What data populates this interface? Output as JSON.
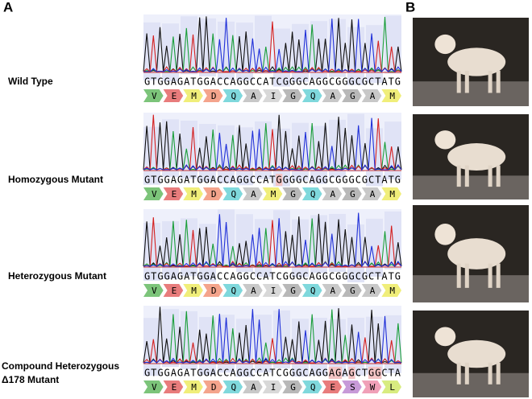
{
  "panels": {
    "a": "A",
    "b": "B"
  },
  "rows": [
    {
      "label": [
        "Wild Type"
      ],
      "sequence": "GTGGAGATGGACCAGGCCATCGGGCAGGCGGGCGCTATG",
      "amino_acids": [
        "V",
        "E",
        "M",
        "D",
        "Q",
        "A",
        "I",
        "G",
        "Q",
        "A",
        "G",
        "A",
        "M"
      ]
    },
    {
      "label": [
        "Homozygous Mutant"
      ],
      "sequence": "GTGGAGATGGACCAGGCCATGGGGCAGGCGGGCGCTATG",
      "amino_acids": [
        "V",
        "E",
        "M",
        "D",
        "Q",
        "A",
        "M",
        "G",
        "Q",
        "A",
        "G",
        "A",
        "M"
      ]
    },
    {
      "label": [
        "Heterozygous Mutant"
      ],
      "sequence": "GTGGAGATGGACCAGGCCATCGGGCAGGCGGGCGCTATG",
      "amino_acids": [
        "V",
        "E",
        "M",
        "D",
        "Q",
        "A",
        "I",
        "G",
        "Q",
        "A",
        "G",
        "A",
        "M"
      ]
    },
    {
      "label": [
        "Compound Heterozygous",
        "Δ178 Mutant"
      ],
      "sequence": "GTGGAGATGGACCAGGCCATCGGGCAGGAGAGCTGGCTA",
      "amino_acids": [
        "V",
        "E",
        "M",
        "D",
        "Q",
        "A",
        "I",
        "G",
        "Q",
        "E",
        "S",
        "W",
        "L"
      ]
    }
  ]
}
